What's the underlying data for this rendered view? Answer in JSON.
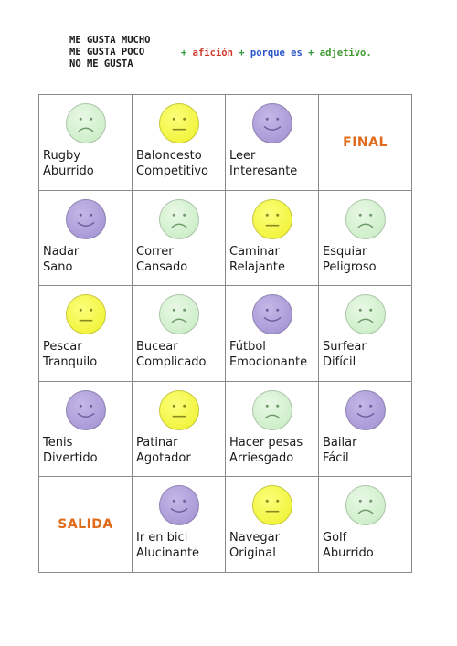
{
  "header": {
    "lines": [
      "ME GUSTA MUCHO",
      "ME GUSTA POCO",
      "NO ME GUSTA"
    ],
    "formula": {
      "plus": "+",
      "hobby": "afición",
      "because": "porque es",
      "adjective": "adjetivo."
    }
  },
  "board": {
    "cells": [
      {
        "face": "green",
        "mood": "sad-icon",
        "activity": "Rugby",
        "adjective": "Aburrido"
      },
      {
        "face": "yellow",
        "mood": "neutral-icon",
        "activity": "Baloncesto",
        "adjective": "Competitivo"
      },
      {
        "face": "purple",
        "mood": "happy-icon",
        "activity": "Leer",
        "adjective": "Interesante"
      },
      {
        "special": "FINAL"
      },
      {
        "face": "purple",
        "mood": "happy-icon",
        "activity": "Nadar",
        "adjective": "Sano"
      },
      {
        "face": "green",
        "mood": "sad-icon",
        "activity": "Correr",
        "adjective": "Cansado"
      },
      {
        "face": "yellow",
        "mood": "neutral-icon",
        "activity": "Caminar",
        "adjective": "Relajante"
      },
      {
        "face": "green",
        "mood": "sad-icon",
        "activity": "Esquiar",
        "adjective": "Peligroso"
      },
      {
        "face": "yellow",
        "mood": "neutral-icon",
        "activity": "Pescar",
        "adjective": "Tranquilo"
      },
      {
        "face": "green",
        "mood": "sad-icon",
        "activity": "Bucear",
        "adjective": "Complicado"
      },
      {
        "face": "purple",
        "mood": "happy-icon",
        "activity": "Fútbol",
        "adjective": "Emocionante"
      },
      {
        "face": "green",
        "mood": "sad-icon",
        "activity": "Surfear",
        "adjective": "Difícil"
      },
      {
        "face": "purple",
        "mood": "happy-icon",
        "activity": "Tenis",
        "adjective": "Divertido"
      },
      {
        "face": "yellow",
        "mood": "neutral-icon",
        "activity": "Patinar",
        "adjective": "Agotador"
      },
      {
        "face": "green",
        "mood": "sad-icon",
        "activity": "Hacer pesas",
        "adjective": "Arriesgado"
      },
      {
        "face": "purple",
        "mood": "happy-icon",
        "activity": "Bailar",
        "adjective": "Fácil"
      },
      {
        "special": "SALIDA"
      },
      {
        "face": "purple",
        "mood": "happy-icon",
        "activity": "Ir en bici",
        "adjective": "Alucinante"
      },
      {
        "face": "yellow",
        "mood": "neutral-icon",
        "activity": "Navegar",
        "adjective": "Original"
      },
      {
        "face": "green",
        "mood": "sad-icon",
        "activity": "Golf",
        "adjective": "Aburrido"
      }
    ]
  },
  "colors": {
    "green_face": "#c4ebbf",
    "yellow_face": "#eef028",
    "purple_face": "#9f8fd2",
    "special_text": "#e06b1a"
  }
}
